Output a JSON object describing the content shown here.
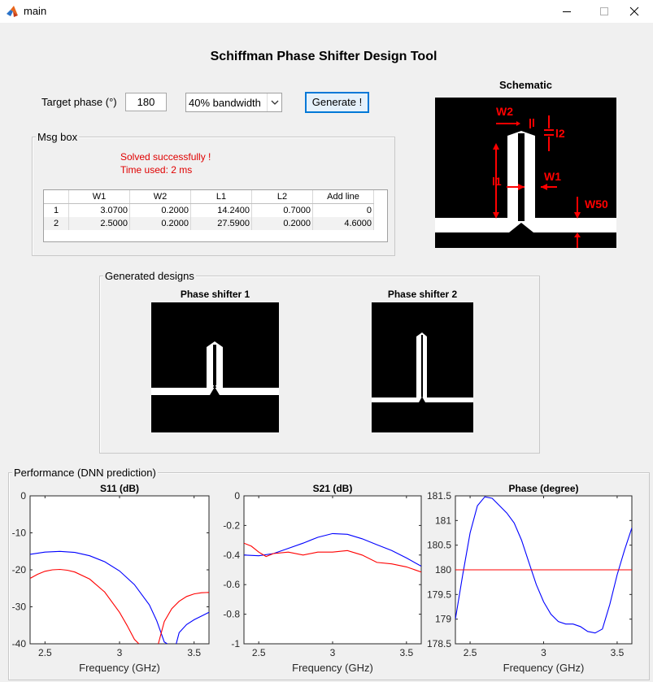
{
  "window": {
    "title": "main"
  },
  "app_title": "Schiffman Phase Shifter Design Tool",
  "controls": {
    "target_phase_label": "Target phase (°)",
    "target_phase_value": "180",
    "bandwidth_selected": "40% bandwidth",
    "generate_label": "Generate !"
  },
  "msg_box": {
    "label": "Msg box",
    "status": "Solved successfully !",
    "time": "Time used: 2 ms",
    "table": {
      "headers": [
        "W1",
        "W2",
        "L1",
        "L2",
        "Add line"
      ],
      "rows": [
        {
          "index": "1",
          "cells": [
            "3.0700",
            "0.2000",
            "14.2400",
            "0.7000",
            "0"
          ]
        },
        {
          "index": "2",
          "cells": [
            "2.5000",
            "0.2000",
            "27.5900",
            "0.2000",
            "4.6000"
          ]
        }
      ]
    }
  },
  "schematic": {
    "title": "Schematic",
    "labels": {
      "w2": "W2",
      "l": "l",
      "l2": "l2",
      "l1": "l1",
      "w1": "W1",
      "w50": "W50"
    }
  },
  "designs": {
    "label": "Generated designs",
    "shifter1_title": "Phase shifter 1",
    "shifter2_title": "Phase shifter 2"
  },
  "performance": {
    "label": "Performance (DNN prediction)"
  },
  "colors": {
    "blue": "#0000ff",
    "red": "#ff0000",
    "msg": "#e00000"
  },
  "chart_data": [
    {
      "type": "line",
      "title": "S11 (dB)",
      "xlabel": "Frequency (GHz)",
      "ylabel": "",
      "xlim": [
        2.4,
        3.6
      ],
      "ylim": [
        -40,
        0
      ],
      "xticks": [
        "2.5",
        "3",
        "3.5"
      ],
      "yticks": [
        "0",
        "-10",
        "-20",
        "-30",
        "-40"
      ],
      "series": [
        {
          "color": "#0000ff",
          "x": [
            2.4,
            2.5,
            2.6,
            2.7,
            2.8,
            2.9,
            3.0,
            3.1,
            3.2,
            3.25,
            3.3,
            3.32
          ],
          "y": [
            -15.8,
            -15.2,
            -15.0,
            -15.3,
            -16.2,
            -17.8,
            -20.3,
            -24.0,
            -29.5,
            -33.8,
            -39.5,
            -40
          ],
          "x2": [
            3.38,
            3.4,
            3.45,
            3.5,
            3.55,
            3.6
          ],
          "y2": [
            -40,
            -37.0,
            -34.8,
            -33.5,
            -32.5,
            -31.5
          ]
        },
        {
          "color": "#ff0000",
          "x": [
            2.4,
            2.45,
            2.5,
            2.55,
            2.6,
            2.65,
            2.7,
            2.8,
            2.9,
            3.0,
            3.05,
            3.1,
            3.13
          ],
          "y": [
            -22.3,
            -21.2,
            -20.4,
            -20.0,
            -19.9,
            -20.1,
            -20.6,
            -22.5,
            -26.0,
            -31.5,
            -35.0,
            -38.8,
            -40
          ],
          "x2": [
            3.26,
            3.3,
            3.35,
            3.4,
            3.45,
            3.5,
            3.55,
            3.6
          ],
          "y2": [
            -40,
            -34.0,
            -30.5,
            -28.5,
            -27.2,
            -26.5,
            -26.2,
            -26.1
          ]
        }
      ]
    },
    {
      "type": "line",
      "title": "S21 (dB)",
      "xlabel": "Frequency (GHz)",
      "ylabel": "",
      "xlim": [
        2.4,
        3.6
      ],
      "ylim": [
        -1,
        0
      ],
      "xticks": [
        "2.5",
        "3",
        "3.5"
      ],
      "yticks": [
        "0",
        "-0.2",
        "-0.4",
        "-0.6",
        "-0.8",
        "-1"
      ],
      "series": [
        {
          "color": "#0000ff",
          "x": [
            2.4,
            2.5,
            2.6,
            2.7,
            2.8,
            2.9,
            3.0,
            3.1,
            3.2,
            3.3,
            3.4,
            3.5,
            3.6
          ],
          "y": [
            -0.4,
            -0.405,
            -0.39,
            -0.355,
            -0.32,
            -0.28,
            -0.255,
            -0.26,
            -0.29,
            -0.33,
            -0.37,
            -0.42,
            -0.475
          ]
        },
        {
          "color": "#ff0000",
          "x": [
            2.4,
            2.45,
            2.5,
            2.55,
            2.6,
            2.7,
            2.8,
            2.9,
            3.0,
            3.1,
            3.2,
            3.3,
            3.4,
            3.5,
            3.6
          ],
          "y": [
            -0.32,
            -0.34,
            -0.38,
            -0.41,
            -0.39,
            -0.38,
            -0.4,
            -0.38,
            -0.38,
            -0.37,
            -0.4,
            -0.45,
            -0.46,
            -0.48,
            -0.515
          ]
        }
      ]
    },
    {
      "type": "line",
      "title": "Phase (degree)",
      "xlabel": "Frequency (GHz)",
      "ylabel": "",
      "xlim": [
        2.4,
        3.6
      ],
      "ylim": [
        178.5,
        181.5
      ],
      "xticks": [
        "2.5",
        "3",
        "3.5"
      ],
      "yticks": [
        "181.5",
        "181",
        "180.5",
        "180",
        "179.5",
        "179",
        "178.5"
      ],
      "series": [
        {
          "color": "#0000ff",
          "x": [
            2.4,
            2.45,
            2.5,
            2.55,
            2.6,
            2.65,
            2.7,
            2.75,
            2.8,
            2.85,
            2.9,
            2.95,
            3.0,
            3.05,
            3.1,
            3.15,
            3.2,
            3.25,
            3.3,
            3.35,
            3.4,
            3.45,
            3.5,
            3.55,
            3.6
          ],
          "y": [
            179.0,
            179.9,
            180.75,
            181.3,
            181.48,
            181.45,
            181.3,
            181.15,
            180.95,
            180.6,
            180.15,
            179.7,
            179.35,
            179.1,
            178.95,
            178.9,
            178.9,
            178.85,
            178.75,
            178.72,
            178.8,
            179.3,
            179.9,
            180.4,
            180.85
          ]
        },
        {
          "color": "#ff0000",
          "x": [
            2.4,
            3.6
          ],
          "y": [
            180,
            180
          ]
        }
      ]
    }
  ]
}
